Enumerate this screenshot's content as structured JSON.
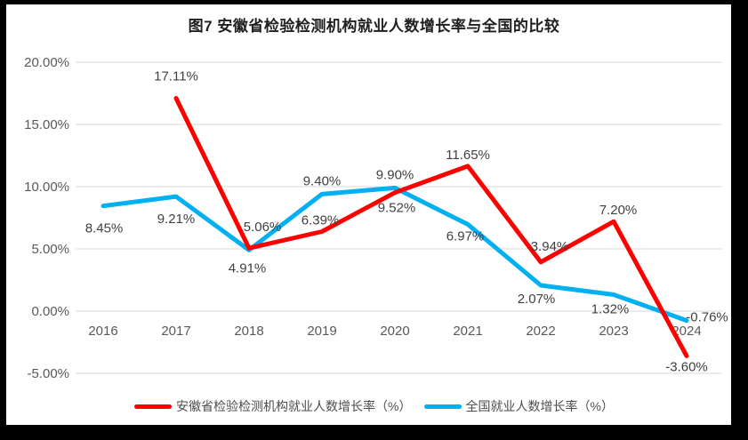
{
  "chart_data": {
    "type": "line",
    "title": "图7  安徽省检验检测机构就业人数增长率与全国的比较",
    "categories": [
      "2016",
      "2017",
      "2018",
      "2019",
      "2020",
      "2021",
      "2022",
      "2023",
      "2024"
    ],
    "y_axis": {
      "min": -5,
      "max": 20,
      "grid": true,
      "ticks": [
        {
          "label": "20.00%",
          "value": 20
        },
        {
          "label": "15.00%",
          "value": 15
        },
        {
          "label": "10.00%",
          "value": 10
        },
        {
          "label": "5.00%",
          "value": 5
        },
        {
          "label": "0.00%",
          "value": 0
        },
        {
          "label": "-5.00%",
          "value": -5
        }
      ]
    },
    "series": [
      {
        "name": "安徽省检验检测机构就业人数增长率（%）",
        "color": "#FF0000",
        "points": [
          {
            "year": "2016",
            "value": null
          },
          {
            "year": "2017",
            "value": 17.11,
            "label": "17.11%",
            "label_dx": 0,
            "label_dy": -25
          },
          {
            "year": "2018",
            "value": 5.06,
            "label": "5.06%",
            "label_dx": 15,
            "label_dy": -24
          },
          {
            "year": "2019",
            "value": 6.39,
            "label": "6.39%",
            "label_dx": -2,
            "label_dy": -13
          },
          {
            "year": "2020",
            "value": 9.52,
            "label": "9.52%",
            "label_dx": 2,
            "label_dy": 17
          },
          {
            "year": "2021",
            "value": 11.65,
            "label": "11.65%",
            "label_dx": 0,
            "label_dy": -13
          },
          {
            "year": "2022",
            "value": 3.94,
            "label": "3.94%",
            "label_dx": 10,
            "label_dy": -18
          },
          {
            "year": "2023",
            "value": 7.2,
            "label": "7.20%",
            "label_dx": 5,
            "label_dy": -13
          },
          {
            "year": "2024",
            "value": -3.6,
            "label": "-3.60%",
            "label_dx": 0,
            "label_dy": 12
          }
        ]
      },
      {
        "name": "全国就业人数增长率（%）",
        "color": "#00B0F0",
        "points": [
          {
            "year": "2016",
            "value": 8.45,
            "label": "8.45%",
            "label_dx": 1,
            "label_dy": 25
          },
          {
            "year": "2017",
            "value": 9.21,
            "label": "9.21%",
            "label_dx": 0,
            "label_dy": 25
          },
          {
            "year": "2018",
            "value": 4.91,
            "label": "4.91%",
            "label_dx": -2,
            "label_dy": 20
          },
          {
            "year": "2019",
            "value": 9.4,
            "label": "9.40%",
            "label_dx": 0,
            "label_dy": -15
          },
          {
            "year": "2020",
            "value": 9.9,
            "label": "9.90%",
            "label_dx": 0,
            "label_dy": -15
          },
          {
            "year": "2021",
            "value": 6.97,
            "label": "6.97%",
            "label_dx": -3,
            "label_dy": 13
          },
          {
            "year": "2022",
            "value": 2.07,
            "label": "2.07%",
            "label_dx": -5,
            "label_dy": 15
          },
          {
            "year": "2023",
            "value": 1.32,
            "label": "1.32%",
            "label_dx": -4,
            "label_dy": 16
          },
          {
            "year": "2024",
            "value": -0.76,
            "label": "-0.76%",
            "label_dx": 23,
            "label_dy": -4
          }
        ]
      }
    ],
    "legend": {
      "position": "bottom",
      "items": [
        {
          "name": "安徽省检验检测机构就业人数增长率（%）",
          "color": "#FF0000"
        },
        {
          "name": "全国就业人数增长率（%）",
          "color": "#00B0F0"
        }
      ]
    },
    "colors": {
      "grid": "#D9D9D9",
      "axis_text": "#595959",
      "data_label": "#404040",
      "background": "#FFFFFF",
      "frame": "#000000"
    }
  }
}
